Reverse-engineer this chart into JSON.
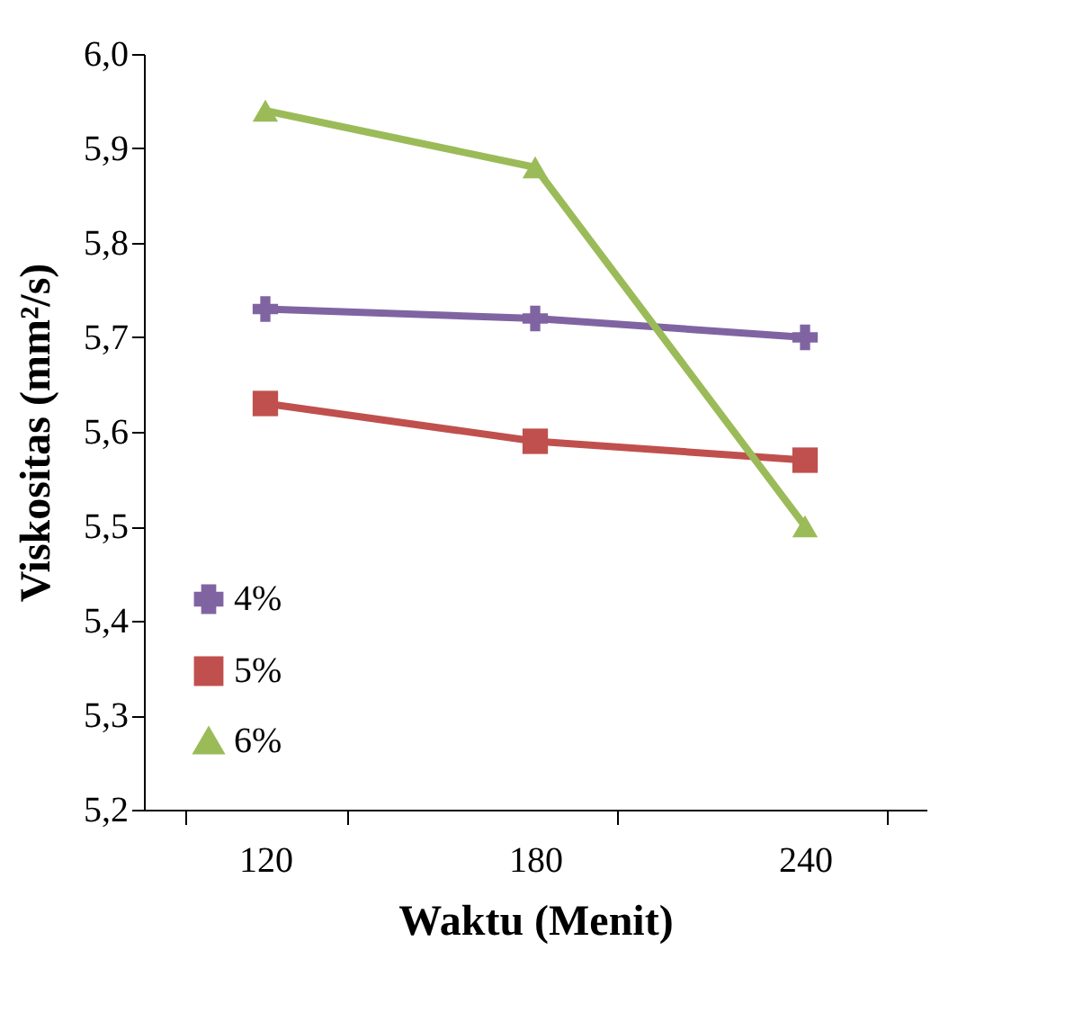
{
  "chart_data": {
    "type": "line",
    "xlabel": "Waktu (Menit)",
    "ylabel": "Viskositas (mm²/s)",
    "categories": [
      "120",
      "180",
      "240"
    ],
    "ylim": [
      5.2,
      6.0
    ],
    "yticks": [
      {
        "value": 5.2,
        "label": "5,2"
      },
      {
        "value": 5.3,
        "label": "5,3"
      },
      {
        "value": 5.4,
        "label": "5,4"
      },
      {
        "value": 5.5,
        "label": "5,5"
      },
      {
        "value": 5.6,
        "label": "5,6"
      },
      {
        "value": 5.7,
        "label": "5,7"
      },
      {
        "value": 5.8,
        "label": "5,8"
      },
      {
        "value": 5.9,
        "label": "5,9"
      },
      {
        "value": 6.0,
        "label": "6,0"
      }
    ],
    "series": [
      {
        "name": "4%",
        "color": "#8064a2",
        "marker": "cross",
        "values": [
          5.73,
          5.72,
          5.7
        ]
      },
      {
        "name": "5%",
        "color": "#c0504d",
        "marker": "square",
        "values": [
          5.63,
          5.59,
          5.57
        ]
      },
      {
        "name": "6%",
        "color": "#9bbb59",
        "marker": "triangle",
        "values": [
          5.94,
          5.88,
          5.5
        ]
      }
    ],
    "legend": "bottom left",
    "grid": false
  }
}
